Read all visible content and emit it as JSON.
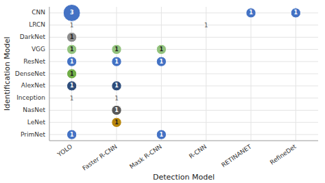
{
  "chart_data": {
    "type": "bubble",
    "categories": [
      "YOLO",
      "Faster R-CNN",
      "Mask R-CNN",
      "R-CNN",
      "RETINANET",
      "RefineDet"
    ],
    "y_categories": [
      "CNN",
      "LRCN",
      "DarkNet",
      "VGG",
      "ResNet",
      "DenseNet",
      "AlexNet",
      "Inception",
      "NasNet",
      "LeNet",
      "PrimNet"
    ],
    "x_label": "Detection Model",
    "y_label": "Identification Model",
    "grid": true,
    "data_labels": true,
    "points": [
      {
        "x": "YOLO",
        "y": "CNN",
        "value": 3,
        "color": "#4472c4"
      },
      {
        "x": "RETINANET",
        "y": "CNN",
        "value": 1,
        "color": "#4472c4"
      },
      {
        "x": "RefineDet",
        "y": "CNN",
        "value": 1,
        "color": "#4472c4"
      },
      {
        "x": "YOLO",
        "y": "LRCN",
        "value": 1,
        "color": "none"
      },
      {
        "x": "R-CNN",
        "y": "LRCN",
        "value": 1,
        "color": "none"
      },
      {
        "x": "YOLO",
        "y": "DarkNet",
        "value": 1,
        "color": "#8c8c8c"
      },
      {
        "x": "YOLO",
        "y": "VGG",
        "value": 1,
        "color": "#92c27d"
      },
      {
        "x": "Faster R-CNN",
        "y": "VGG",
        "value": 1,
        "color": "#92c27d"
      },
      {
        "x": "Mask R-CNN",
        "y": "VGG",
        "value": 1,
        "color": "#92c27d"
      },
      {
        "x": "YOLO",
        "y": "ResNet",
        "value": 1,
        "color": "#4472c4"
      },
      {
        "x": "Faster R-CNN",
        "y": "ResNet",
        "value": 1,
        "color": "#4472c4"
      },
      {
        "x": "Mask R-CNN",
        "y": "ResNet",
        "value": 1,
        "color": "#4472c4"
      },
      {
        "x": "YOLO",
        "y": "DenseNet",
        "value": 1,
        "color": "#70ad47"
      },
      {
        "x": "YOLO",
        "y": "AlexNet",
        "value": 1,
        "color": "#2e4d7b"
      },
      {
        "x": "Faster R-CNN",
        "y": "AlexNet",
        "value": 1,
        "color": "#2e4d7b"
      },
      {
        "x": "YOLO",
        "y": "Inception",
        "value": 1,
        "color": "none"
      },
      {
        "x": "Faster R-CNN",
        "y": "Inception",
        "value": 1,
        "color": "none"
      },
      {
        "x": "Faster R-CNN",
        "y": "NasNet",
        "value": 1,
        "color": "#595959"
      },
      {
        "x": "Faster R-CNN",
        "y": "LeNet",
        "value": 1,
        "color": "#b8860b"
      },
      {
        "x": "YOLO",
        "y": "PrimNet",
        "value": 1,
        "color": "#4472c4"
      },
      {
        "x": "Mask R-CNN",
        "y": "PrimNet",
        "value": 1,
        "color": "#4472c4"
      }
    ]
  }
}
